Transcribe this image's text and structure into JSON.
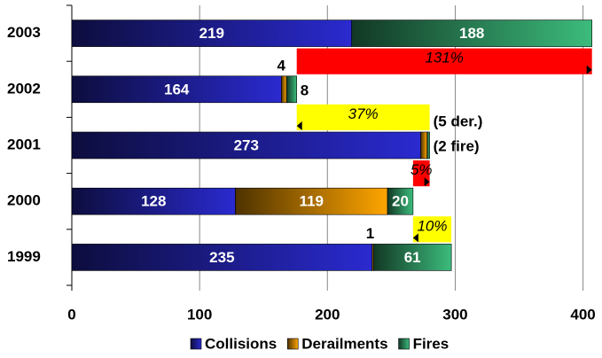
{
  "chart_data": {
    "type": "stacked-barh",
    "categories": [
      "2003",
      "2002",
      "2001",
      "2000",
      "1999"
    ],
    "series": [
      {
        "name": "Collisions",
        "color": "#2a2ad0",
        "values": [
          219,
          164,
          273,
          128,
          235
        ]
      },
      {
        "name": "Derailments",
        "color": "#ffa500",
        "values": [
          0,
          4,
          5,
          119,
          1
        ],
        "value_labels": [
          null,
          "4",
          "(5 der.)",
          "119",
          "1"
        ]
      },
      {
        "name": "Fires",
        "color": "#3cbc7c",
        "values": [
          188,
          8,
          2,
          20,
          61
        ],
        "value_labels": [
          "188",
          "8",
          "(2 fire)",
          "20",
          "61"
        ]
      }
    ],
    "xlim": [
      0,
      410
    ],
    "xticks": [
      0,
      100,
      200,
      300,
      400
    ],
    "grid": true,
    "legend": "bottom",
    "annotations": [
      {
        "label": "131%",
        "color": "#ff0000"
      },
      {
        "label": "37%",
        "color": "#ffff00"
      },
      {
        "label": "5%",
        "color": "#ff0000"
      },
      {
        "label": "10%",
        "color": "#ffff00"
      }
    ]
  }
}
